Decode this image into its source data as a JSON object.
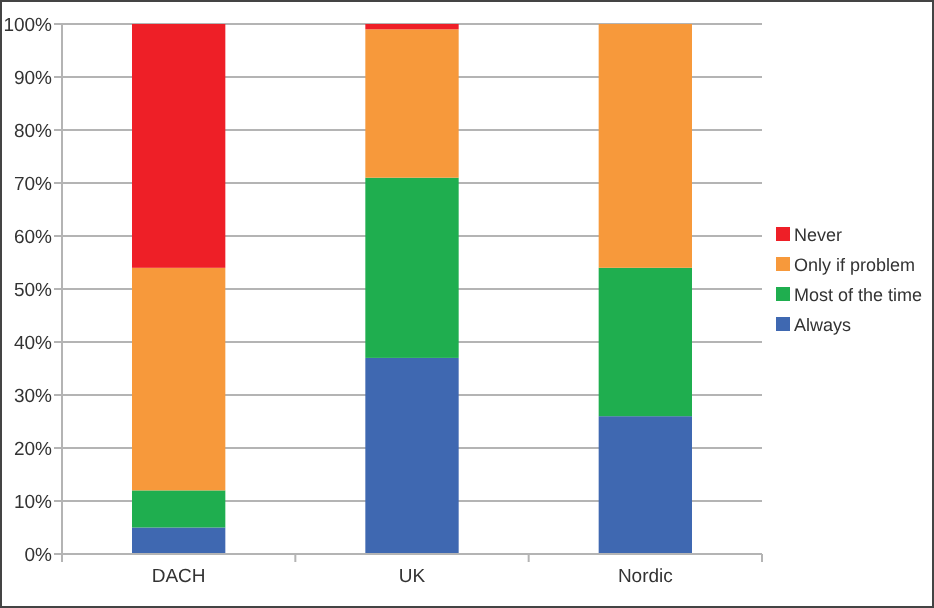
{
  "chart_data": {
    "type": "bar",
    "stacked": true,
    "categories": [
      "DACH",
      "UK",
      "Nordic"
    ],
    "series": [
      {
        "name": "Always",
        "color": "#3f68b1",
        "values": [
          5,
          37,
          26
        ]
      },
      {
        "name": "Most of the time",
        "color": "#1fae4f",
        "values": [
          7,
          34,
          28
        ]
      },
      {
        "name": "Only if problem",
        "color": "#f7993b",
        "values": [
          42,
          28,
          46
        ]
      },
      {
        "name": "Never",
        "color": "#ee1f27",
        "values": [
          46,
          1,
          0
        ]
      }
    ],
    "ylim": [
      0,
      100
    ],
    "yticks": [
      {
        "value": 0,
        "label": "0%"
      },
      {
        "value": 10,
        "label": "10%"
      },
      {
        "value": 20,
        "label": "20%"
      },
      {
        "value": 30,
        "label": "30%"
      },
      {
        "value": 40,
        "label": "40%"
      },
      {
        "value": 50,
        "label": "50%"
      },
      {
        "value": 60,
        "label": "60%"
      },
      {
        "value": 70,
        "label": "70%"
      },
      {
        "value": 80,
        "label": "80%"
      },
      {
        "value": 90,
        "label": "90%"
      },
      {
        "value": 100,
        "label": "100%"
      }
    ],
    "grid": "y",
    "legend": "right"
  }
}
